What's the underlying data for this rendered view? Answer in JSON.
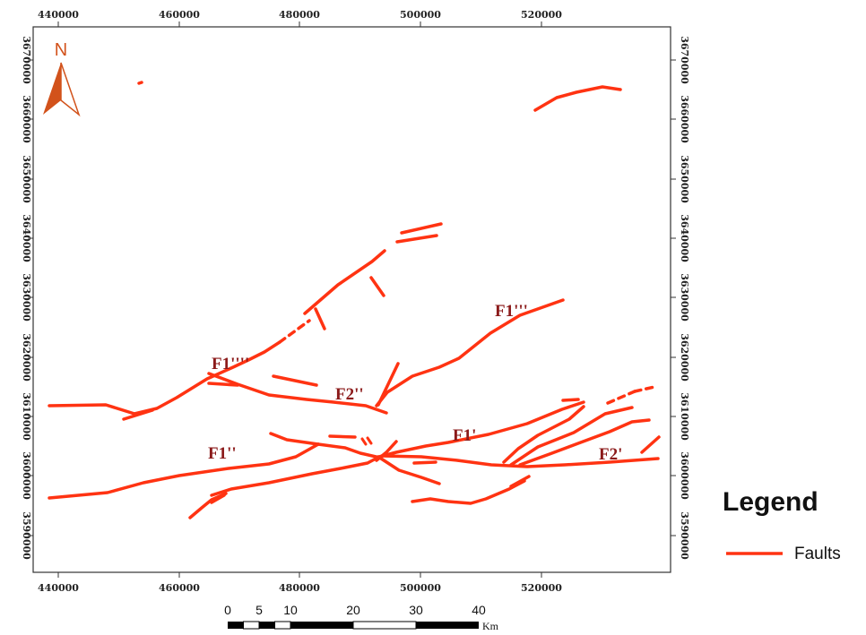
{
  "map": {
    "x_ticks": [
      "440000",
      "460000",
      "480000",
      "500000",
      "520000"
    ],
    "y_ticks": [
      "3670000",
      "3660000",
      "3650000",
      "3640000",
      "3630000",
      "3620000",
      "3610000",
      "3600000",
      "3590000"
    ],
    "fault_color": "#ff3312",
    "fault_labels": [
      "F1''''",
      "F1'''",
      "F2''",
      "F1'",
      "F1''",
      "F2'"
    ]
  },
  "north_arrow": {
    "label": "N",
    "color": "#d2521b"
  },
  "legend": {
    "title": "Legend",
    "item_label": "Faults"
  },
  "scale_bar": {
    "numbers": [
      "0",
      "5",
      "10",
      "20",
      "30",
      "40"
    ],
    "unit": "Km"
  }
}
